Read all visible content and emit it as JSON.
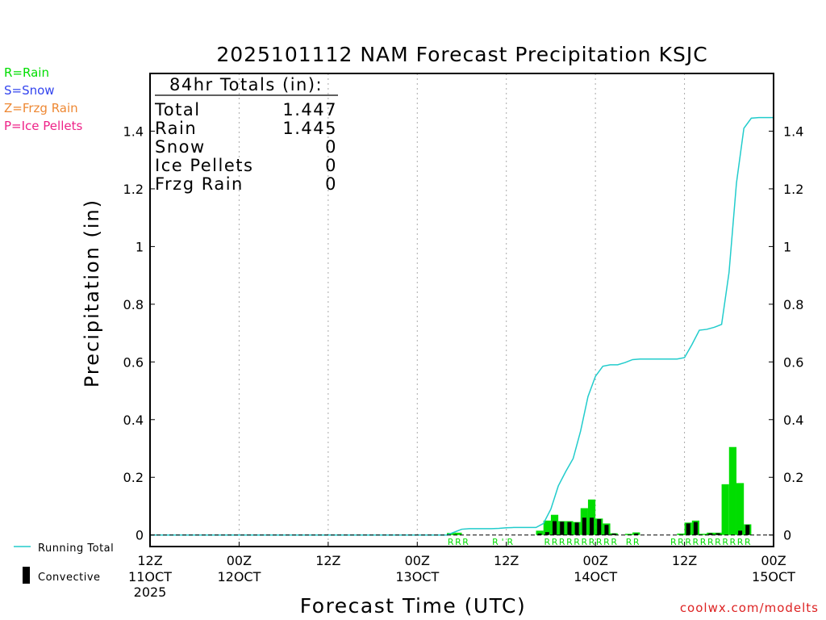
{
  "chart_data": {
    "type": "bar",
    "title": "2025101112 NAM Forecast Precipitation KSJC",
    "ylabel": "Precipitation (in)",
    "xlabel": "Forecast Time (UTC)",
    "ylim": [
      -0.04,
      1.6
    ],
    "xlim_hours": [
      0,
      84
    ],
    "y_ticks": [
      0,
      0.2,
      0.4,
      0.6,
      0.8,
      1,
      1.2,
      1.4
    ],
    "y_tick_labels": [
      "0",
      "0.2",
      "0.4",
      "0.6",
      "0.8",
      "1",
      "1.2",
      "1.4"
    ],
    "x_ticks": [
      {
        "hour": 0,
        "label": "12Z",
        "sub": "11OCT",
        "sub2": "2025"
      },
      {
        "hour": 12,
        "label": "00Z",
        "sub": "12OCT",
        "sub2": ""
      },
      {
        "hour": 24,
        "label": "12Z",
        "sub": "",
        "sub2": ""
      },
      {
        "hour": 36,
        "label": "00Z",
        "sub": "13OCT",
        "sub2": ""
      },
      {
        "hour": 48,
        "label": "12Z",
        "sub": "",
        "sub2": ""
      },
      {
        "hour": 60,
        "label": "00Z",
        "sub": "14OCT",
        "sub2": ""
      },
      {
        "hour": 72,
        "label": "12Z",
        "sub": "",
        "sub2": ""
      },
      {
        "hour": 84,
        "label": "00Z",
        "sub": "15OCT",
        "sub2": ""
      }
    ],
    "totals": {
      "header": "84hr Totals (in):",
      "rows": [
        {
          "label": "Total",
          "value": "1.447"
        },
        {
          "label": "Rain",
          "value": "1.445"
        },
        {
          "label": "Snow",
          "value": "0"
        },
        {
          "label": "Ice Pellets",
          "value": "0"
        },
        {
          "label": "Frzg Rain",
          "value": "0"
        }
      ]
    },
    "precip_series": {
      "name": "Rain",
      "hours": [
        41,
        42,
        53,
        54,
        55,
        56,
        57,
        58,
        59,
        60,
        61,
        62,
        63,
        65,
        66,
        72,
        73,
        74,
        75,
        76,
        77,
        78,
        79,
        80,
        81
      ],
      "values": [
        0.007,
        0.008,
        0.015,
        0.05,
        0.07,
        0.048,
        0.048,
        0.045,
        0.093,
        0.123,
        0.057,
        0.04,
        0.006,
        0.004,
        0.009,
        0.005,
        0.043,
        0.05,
        0.004,
        0.008,
        0.008,
        0.176,
        0.305,
        0.18,
        0.037
      ]
    },
    "convective_series": {
      "name": "Convective",
      "hours": [
        53,
        54,
        55,
        56,
        57,
        58,
        59,
        60,
        61,
        62,
        63,
        66,
        73,
        74,
        76,
        77,
        80,
        81
      ],
      "values": [
        0.005,
        0.01,
        0.048,
        0.046,
        0.045,
        0.043,
        0.06,
        0.06,
        0.055,
        0.035,
        0.005,
        0.005,
        0.04,
        0.045,
        0.006,
        0.006,
        0.015,
        0.035
      ]
    },
    "running_total": {
      "name": "Running Total",
      "hours": [
        0,
        40,
        41,
        42,
        43,
        44,
        45,
        46,
        47,
        48,
        49,
        50,
        51,
        52,
        53,
        54,
        55,
        56,
        57,
        58,
        59,
        60,
        61,
        62,
        63,
        64,
        65,
        66,
        67,
        68,
        69,
        70,
        71,
        72,
        73,
        74,
        75,
        76,
        77,
        78,
        79,
        80,
        81,
        82,
        84
      ],
      "values": [
        0,
        0,
        0.01,
        0.02,
        0.022,
        0.022,
        0.022,
        0.022,
        0.023,
        0.025,
        0.026,
        0.026,
        0.026,
        0.026,
        0.04,
        0.09,
        0.17,
        0.22,
        0.265,
        0.36,
        0.48,
        0.55,
        0.585,
        0.59,
        0.59,
        0.598,
        0.608,
        0.61,
        0.61,
        0.61,
        0.61,
        0.61,
        0.61,
        0.615,
        0.66,
        0.71,
        0.713,
        0.72,
        0.73,
        0.91,
        1.22,
        1.41,
        1.445,
        1.447,
        1.447
      ]
    },
    "ptype_markers": [
      {
        "hour": 41,
        "ch": "R"
      },
      {
        "hour": 42,
        "ch": "R"
      },
      {
        "hour": 43,
        "ch": "R"
      },
      {
        "hour": 47,
        "ch": "R"
      },
      {
        "hour": 48,
        "ch": "'"
      },
      {
        "hour": 49,
        "ch": "R"
      },
      {
        "hour": 54,
        "ch": "R"
      },
      {
        "hour": 55,
        "ch": "R"
      },
      {
        "hour": 56,
        "ch": "R"
      },
      {
        "hour": 57,
        "ch": "R"
      },
      {
        "hour": 58,
        "ch": "R"
      },
      {
        "hour": 59,
        "ch": "R"
      },
      {
        "hour": 60,
        "ch": "R"
      },
      {
        "hour": 61,
        "ch": "R"
      },
      {
        "hour": 62,
        "ch": "R"
      },
      {
        "hour": 63,
        "ch": "R"
      },
      {
        "hour": 65,
        "ch": "R"
      },
      {
        "hour": 66,
        "ch": "R"
      },
      {
        "hour": 71,
        "ch": "R"
      },
      {
        "hour": 72,
        "ch": "R"
      },
      {
        "hour": 73,
        "ch": "R"
      },
      {
        "hour": 74,
        "ch": "R"
      },
      {
        "hour": 75,
        "ch": "R"
      },
      {
        "hour": 76,
        "ch": "R"
      },
      {
        "hour": 77,
        "ch": "R"
      },
      {
        "hour": 78,
        "ch": "R"
      },
      {
        "hour": 79,
        "ch": "R"
      },
      {
        "hour": 80,
        "ch": "R"
      },
      {
        "hour": 81,
        "ch": "R"
      }
    ],
    "colors": {
      "rain": "#00dd00",
      "snow": "#3344ee",
      "frzg": "#ee8833",
      "ice": "#ee2288",
      "running": "#22cccc",
      "convective": "#000000",
      "grid": "#aaaaaa"
    }
  },
  "type_legend": [
    {
      "text": "R=Rain",
      "color": "#00dd00"
    },
    {
      "text": "S=Snow",
      "color": "#3344ee"
    },
    {
      "text": "Z=Frzg Rain",
      "color": "#ee8833"
    },
    {
      "text": "P=Ice Pellets",
      "color": "#ee2288"
    }
  ],
  "bottom_legend": {
    "running": "Running Total",
    "convective": "Convective"
  },
  "footer": "coolwx.com/modelts"
}
